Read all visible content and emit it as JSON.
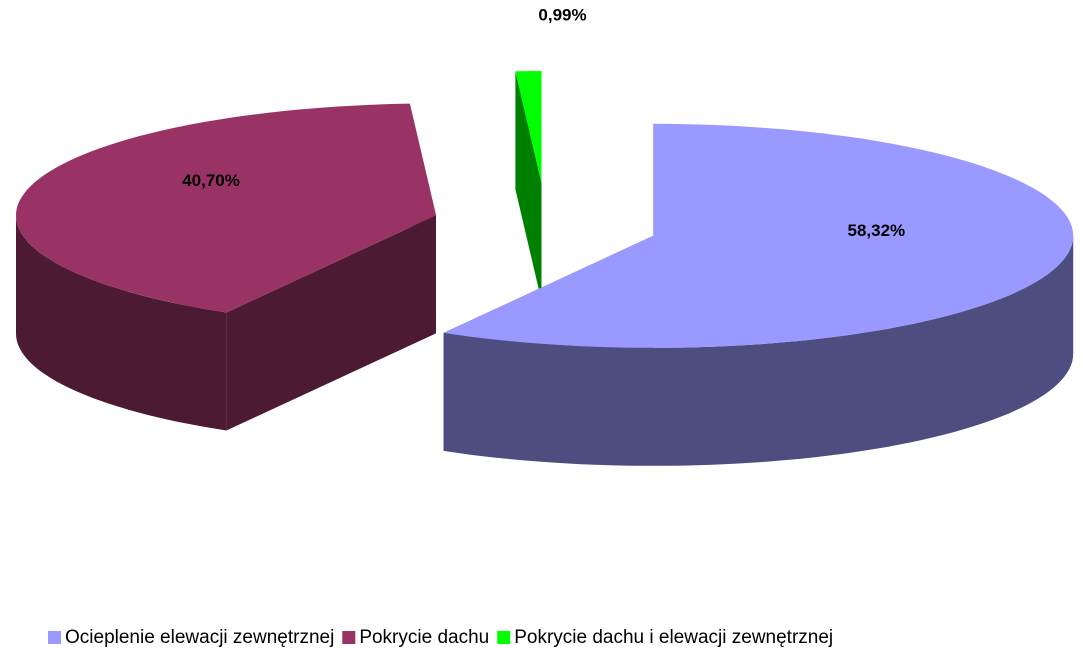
{
  "chart_data": {
    "type": "pie3d",
    "categories": [
      "Ocieplenie elewacji zewnętrznej",
      "Pokrycie dachu",
      "Pokrycie dachu i elewacji zewnętrznej"
    ],
    "values": [
      58.32,
      40.7,
      0.99
    ],
    "value_labels": [
      "58,32%",
      "40,70%",
      "0,99%"
    ],
    "colors": [
      "#9999ff",
      "#993366",
      "#00ff00"
    ],
    "exploded": true,
    "legend": "bottom"
  }
}
